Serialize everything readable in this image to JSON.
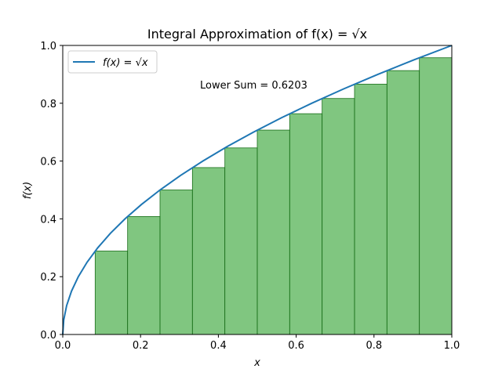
{
  "chart_data": {
    "type": "bar",
    "title": "Integral Approximation of f(x) = √x",
    "xlabel": "x",
    "ylabel": "f(x)",
    "xlim": [
      0.0,
      1.0
    ],
    "ylim": [
      0.0,
      1.0
    ],
    "x_ticks": [
      "0.0",
      "0.2",
      "0.4",
      "0.6",
      "0.8",
      "1.0"
    ],
    "y_ticks": [
      "0.0",
      "0.2",
      "0.4",
      "0.6",
      "0.8",
      "1.0"
    ],
    "grid": false,
    "legend_position": "top-left",
    "annotation": "Lower Sum = 0.6203",
    "series": [
      {
        "name": "f(x) = √x",
        "kind": "line",
        "color": "#1f77b4",
        "x": [
          0.0,
          0.0025,
          0.01,
          0.0225,
          0.04,
          0.0625,
          0.09,
          0.1225,
          0.16,
          0.2025,
          0.25,
          0.3025,
          0.36,
          0.4225,
          0.49,
          0.5625,
          0.64,
          0.7225,
          0.81,
          0.9025,
          1.0
        ],
        "y": [
          0.0,
          0.05,
          0.1,
          0.15,
          0.2,
          0.25,
          0.3,
          0.35,
          0.4,
          0.45,
          0.5,
          0.55,
          0.6,
          0.65,
          0.7,
          0.75,
          0.8,
          0.85,
          0.9,
          0.95,
          1.0
        ]
      },
      {
        "kind": "bar",
        "color": "#2ca02c",
        "x_left": [
          0.0833,
          0.1667,
          0.25,
          0.3333,
          0.4167,
          0.5,
          0.5833,
          0.6667,
          0.75,
          0.8333,
          0.9167
        ],
        "width": 0.0833,
        "values": [
          0.2887,
          0.4082,
          0.5,
          0.5774,
          0.6455,
          0.7071,
          0.7638,
          0.8165,
          0.866,
          0.9129,
          0.9574
        ]
      }
    ]
  }
}
